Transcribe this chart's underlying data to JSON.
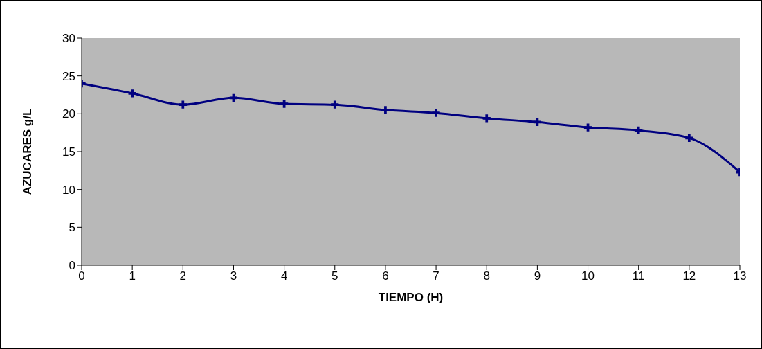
{
  "chart_data": {
    "type": "line",
    "xlabel": "TIEMPO (H)",
    "ylabel": "AZUCARES g/L",
    "x": [
      0,
      1,
      2,
      3,
      4,
      5,
      6,
      7,
      8,
      9,
      10,
      11,
      12,
      13
    ],
    "series": [
      {
        "color": "#000080",
        "values": [
          24.0,
          22.7,
          21.2,
          22.1,
          21.3,
          21.2,
          20.5,
          20.1,
          19.4,
          18.9,
          18.2,
          17.8,
          16.8,
          12.3
        ]
      }
    ],
    "xlim": [
      0,
      13
    ],
    "xticks": [
      0,
      1,
      2,
      3,
      4,
      5,
      6,
      7,
      8,
      9,
      10,
      11,
      12,
      13
    ],
    "ylim": [
      0,
      30
    ],
    "yticks": [
      0,
      5,
      10,
      15,
      20,
      25,
      30
    ],
    "marker": "cross",
    "line_style": "solid"
  }
}
